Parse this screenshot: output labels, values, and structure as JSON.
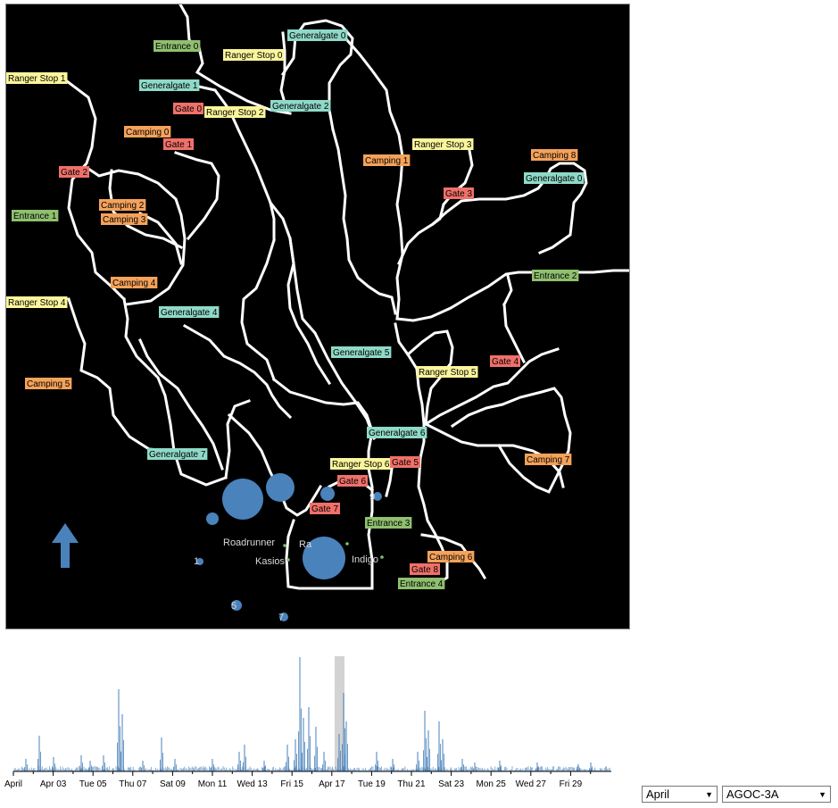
{
  "map": {
    "gate_types": {
      "entrance": {
        "color": "#8fbf6f"
      },
      "generalgate": {
        "color": "#8fd9c8"
      },
      "gate": {
        "color": "#f0706a"
      },
      "camping": {
        "color": "#f5a25a"
      },
      "rangerstop": {
        "color": "#fbf59b"
      }
    },
    "labels": [
      {
        "text": "Entrance 0",
        "type": "entrance"
      },
      {
        "text": "Generalgate 0",
        "type": "generalgate"
      },
      {
        "text": "Ranger Stop 0",
        "type": "rangerstop"
      },
      {
        "text": "Ranger Stop 1",
        "type": "rangerstop"
      },
      {
        "text": "Generalgate 1",
        "type": "generalgate"
      },
      {
        "text": "Gate 0",
        "type": "gate"
      },
      {
        "text": "Ranger Stop 2",
        "type": "rangerstop"
      },
      {
        "text": "Generalgate 2",
        "type": "generalgate"
      },
      {
        "text": "Camping 0",
        "type": "camping"
      },
      {
        "text": "Gate 1",
        "type": "gate"
      },
      {
        "text": "Ranger Stop 3",
        "type": "rangerstop"
      },
      {
        "text": "Camping 1",
        "type": "camping"
      },
      {
        "text": "Camping 8",
        "type": "camping"
      },
      {
        "text": "Gate 2",
        "type": "gate"
      },
      {
        "text": "Generalgate 0",
        "type": "generalgate"
      },
      {
        "text": "Gate 3",
        "type": "gate"
      },
      {
        "text": "Camping 2",
        "type": "camping"
      },
      {
        "text": "Entrance 1",
        "type": "entrance"
      },
      {
        "text": "Camping 3",
        "type": "camping"
      },
      {
        "text": "Entrance 2",
        "type": "entrance"
      },
      {
        "text": "Camping 4",
        "type": "camping"
      },
      {
        "text": "Ranger Stop 4",
        "type": "rangerstop"
      },
      {
        "text": "Generalgate 4",
        "type": "generalgate"
      },
      {
        "text": "Generalgate 5",
        "type": "generalgate"
      },
      {
        "text": "Gate 4",
        "type": "gate"
      },
      {
        "text": "Ranger Stop 5",
        "type": "rangerstop"
      },
      {
        "text": "Camping 5",
        "type": "camping"
      },
      {
        "text": "Generalgate 6",
        "type": "generalgate"
      },
      {
        "text": "Generalgate 7",
        "type": "generalgate"
      },
      {
        "text": "Camping 7",
        "type": "camping"
      },
      {
        "text": "Ranger Stop 6",
        "type": "rangerstop"
      },
      {
        "text": "Gate 5",
        "type": "gate"
      },
      {
        "text": "Gate 6",
        "type": "gate"
      },
      {
        "text": "Gate 7",
        "type": "gate"
      },
      {
        "text": "Entrance 3",
        "type": "entrance"
      },
      {
        "text": "Camping 6",
        "type": "camping"
      },
      {
        "text": "Gate 8",
        "type": "gate"
      },
      {
        "text": "Entrance 4",
        "type": "entrance"
      }
    ],
    "sensor_labels": [
      "Roadrunner",
      "Kasios",
      "Indigo",
      "Ra",
      "1",
      "9",
      "5",
      "7"
    ],
    "bubble_color": "#4a82bb",
    "road_color": "#ffffff",
    "background_color": "#000000",
    "arrow": {
      "direction": "north",
      "color": "#4a82bb",
      "icon": "north-arrow-icon"
    }
  },
  "timeline": {
    "color": "#4a82bb",
    "brush_color": "#d3d3d3",
    "tick_labels": [
      "April",
      "Apr 03",
      "Tue 05",
      "Thu 07",
      "Sat 09",
      "Mon 11",
      "Wed 13",
      "Fri 15",
      "Apr 17",
      "Tue 19",
      "Thu 21",
      "Sat 23",
      "Mon 25",
      "Wed 27",
      "Fri 29"
    ]
  },
  "controls": {
    "month_select": {
      "value": "April"
    },
    "vehicle_select": {
      "value": "AGOC-3A"
    }
  }
}
